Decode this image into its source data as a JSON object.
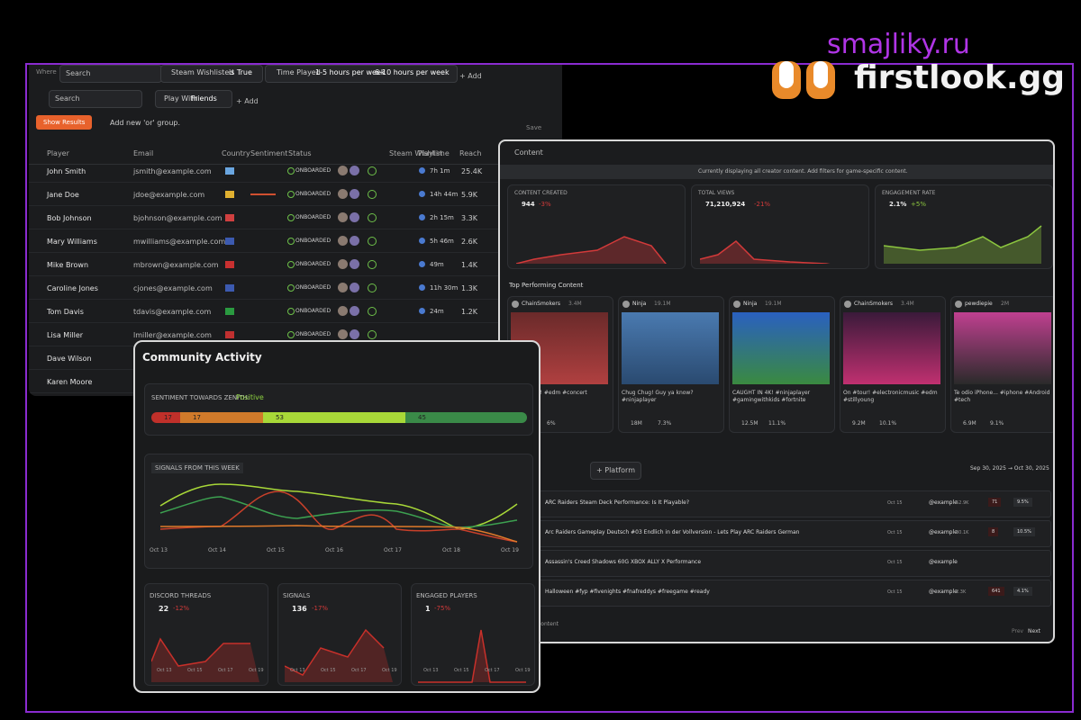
{
  "watermark": "smajliky.ru",
  "brand": "firstlook.gg",
  "players_panel": {
    "filters1": [
      "Where",
      "Search",
      "Steam Wishlisted",
      "is True",
      "Time Played",
      "1-5 hours per week",
      "6-10 hours per week",
      "+ Add"
    ],
    "filters2": [
      "Search",
      "Play With",
      "Friends",
      "+ Add"
    ],
    "show_results": "Show Results",
    "add_group": "Add new 'or' group.",
    "save": "Save",
    "headers": [
      "Player",
      "Email",
      "Country",
      "Sentiment",
      "Status",
      "Steam Wishlist",
      "Playtime",
      "Reach"
    ],
    "status": "ONBOARDED",
    "rows": [
      [
        "John Smith",
        "jsmith@example.com",
        "7h 1m",
        "25.4K"
      ],
      [
        "Jane Doe",
        "jdoe@example.com",
        "14h 44m",
        "5.9K"
      ],
      [
        "Bob Johnson",
        "bjohnson@example.com",
        "2h 15m",
        "3.3K"
      ],
      [
        "Mary Williams",
        "mwilliams@example.com",
        "5h 46m",
        "2.6K"
      ],
      [
        "Mike Brown",
        "mbrown@example.com",
        "49m",
        "1.4K"
      ],
      [
        "Caroline Jones",
        "cjones@example.com",
        "11h 30m",
        "1.3K"
      ],
      [
        "Tom Davis",
        "tdavis@example.com",
        "24m",
        "1.2K"
      ],
      [
        "Lisa Miller",
        "lmiller@example.com",
        "",
        ""
      ],
      [
        "Dave Wilson",
        "",
        "",
        ""
      ],
      [
        "Karen Moore",
        "",
        "",
        ""
      ]
    ]
  },
  "content_panel": {
    "title": "Content",
    "notice": "Currently displaying all creator content. Add filters for game-specific content.",
    "metrics": [
      {
        "label": "CONTENT CREATED",
        "value": "944",
        "change": "-3%"
      },
      {
        "label": "TOTAL VIEWS",
        "value": "71,210,924",
        "change": "-21%"
      },
      {
        "label": "ENGAGEMENT RATE",
        "value": "2.1%",
        "change": "+5%"
      }
    ],
    "top_title": "Top Performing Content",
    "cards": [
      {
        "creator": "ChainSmokers",
        "followers": "3.4M",
        "caption": "...that vibe! #edm #concert",
        "views": "",
        "likes": "6%"
      },
      {
        "creator": "Ninja",
        "followers": "19.1M",
        "caption": "Chug Chug! Guy ya know? #ninjaplayer",
        "views": "18M",
        "likes": "7.3%"
      },
      {
        "creator": "Ninja",
        "followers": "19.1M",
        "caption": "CAUGHT IN 4K! #ninjaplayer #gamingwithkids #fortnite",
        "views": "12.5M",
        "likes": "11.1%"
      },
      {
        "creator": "ChainSmokers",
        "followers": "3.4M",
        "caption": "On #tour! #electronicmusic #edm #stillyoung",
        "views": "9.2M",
        "likes": "10.1%"
      },
      {
        "creator": "pewdiepie",
        "followers": "2M",
        "caption": "Te odio iPhone... #iphone #Android #tech",
        "views": "6.9M",
        "likes": "9.1%"
      }
    ],
    "platform": "+ Platform",
    "date_range": "Sep 30, 2025 → Oct 30, 2025",
    "list": [
      {
        "title": "ARC Raiders Steam Deck Performance: Is It Playable?",
        "date": "Oct 15",
        "creator": "@example",
        "reach": "52.9K",
        "a": "71",
        "b": "9.5%"
      },
      {
        "title": "Arc Raiders Gameplay Deutsch #03 Endlich in der Vollversion - Lets Play ARC Raiders German",
        "date": "Oct 15",
        "creator": "@example",
        "reach": "30.1K",
        "a": "8",
        "b": "10.5%"
      },
      {
        "title": "Assassin's Creed Shadows 60G XBOX ALLY X Performance",
        "date": "Oct 15",
        "creator": "@example",
        "reach": "",
        "a": "",
        "b": ""
      },
      {
        "title": "Halloween #fyp #fivenights #fnafreddys #freegame #ready",
        "date": "Oct 15",
        "creator": "@example",
        "reach": "2.3K",
        "a": "641",
        "b": "4.1%"
      }
    ],
    "footer": "content",
    "prev": "Prev",
    "next": "Next"
  },
  "community_panel": {
    "title": "Community Activity",
    "sentiment_label": "SENTIMENT TOWARDS ZENITH:",
    "sentiment": "Positive",
    "segments": [
      "17",
      "17",
      "53",
      "45"
    ],
    "signals_title": "SIGNALS FROM THIS WEEK",
    "days": [
      "Oct 13",
      "Oct 14",
      "Oct 15",
      "Oct 16",
      "Oct 17",
      "Oct 18",
      "Oct 19"
    ],
    "metrics": [
      {
        "label": "DISCORD THREADS",
        "value": "22",
        "change": "-12%"
      },
      {
        "label": "SIGNALS",
        "value": "136",
        "change": "-17%"
      },
      {
        "label": "ENGAGED PLAYERS",
        "value": "1",
        "change": "-75%"
      }
    ],
    "mini_days": [
      "Oct 13",
      "Oct 15",
      "Oct 17",
      "Oct 19"
    ]
  }
}
